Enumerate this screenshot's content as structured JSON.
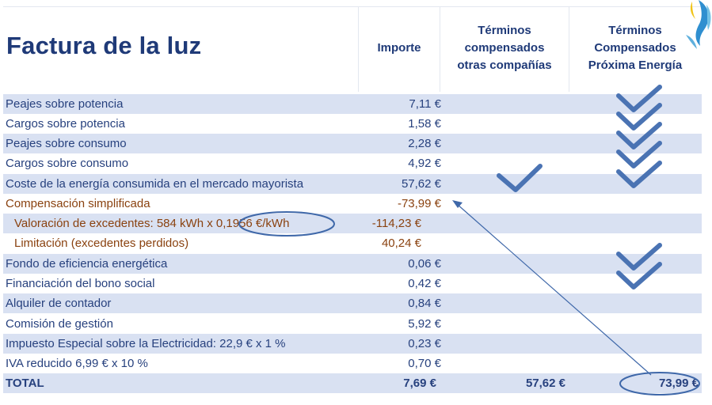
{
  "title": "Factura de la luz",
  "headers": {
    "importe": "Importe",
    "otras": [
      "Términos",
      "compensados",
      "otras compañías"
    ],
    "proxima": [
      "Términos",
      "Compensados",
      "Próxima Energía"
    ]
  },
  "rows": [
    {
      "label": "Peajes sobre potencia",
      "amount": "7,11 €"
    },
    {
      "label": "Cargos sobre potencia",
      "amount": "1,58 €"
    },
    {
      "label": "Peajes sobre consumo",
      "amount": "2,28 €"
    },
    {
      "label": "Cargos sobre consumo",
      "amount": "4,92 €"
    },
    {
      "label": "Coste de la energía consumida en el mercado mayorista",
      "amount": "57,62 €"
    },
    {
      "label": "Compensación simplificada",
      "amount": "-73,99 €"
    },
    {
      "label": "Valoración de excedentes: 584 kWh x 0,1956 €/kWh",
      "amount": "-114,23 €"
    },
    {
      "label": "Limitación (excedentes perdidos)",
      "amount": "40,24 €"
    },
    {
      "label": "Fondo de eficiencia energética",
      "amount": "0,06 €"
    },
    {
      "label": "Financiación del bono social",
      "amount": "0,42 €"
    },
    {
      "label": "Alquiler de contador",
      "amount": "0,84 €"
    },
    {
      "label": "Comisión de gestión",
      "amount": "5,92 €"
    },
    {
      "label": "Impuesto Especial sobre la Electricidad: 22,9 € x 1 %",
      "amount": "0,23 €"
    },
    {
      "label": "IVA reducido 6,99 € x 10 %",
      "amount": "0,70 €"
    }
  ],
  "total": {
    "label": "TOTAL",
    "importe": "7,69 €",
    "otras": "57,62 €",
    "proxima": "73,99 €"
  },
  "colors": {
    "heading": "#1f3a78",
    "text_blue": "#27417e",
    "text_brown": "#8a4210",
    "row_shade": "#d9e1f2",
    "checkmark": "#4a73b3",
    "annotation": "#3f68a9"
  }
}
